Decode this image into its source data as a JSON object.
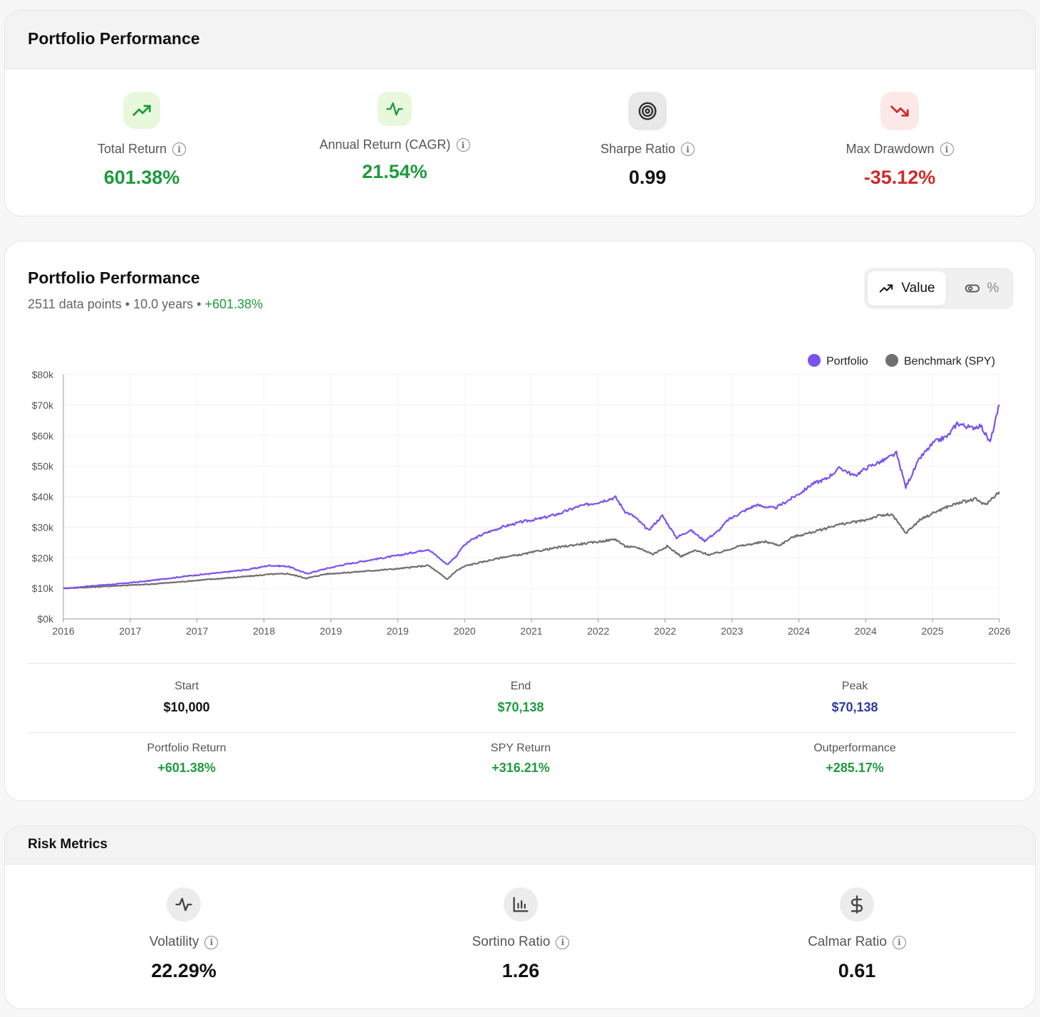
{
  "summary": {
    "title": "Portfolio Performance",
    "metrics": [
      {
        "label": "Total Return",
        "value": "601.38%",
        "icon": "trending-up-icon",
        "tone": "green"
      },
      {
        "label": "Annual Return (CAGR)",
        "value": "21.54%",
        "icon": "activity-icon",
        "tone": "green"
      },
      {
        "label": "Sharpe Ratio",
        "value": "0.99",
        "icon": "target-icon",
        "tone": "dark"
      },
      {
        "label": "Max Drawdown",
        "value": "-35.12%",
        "icon": "trending-down-icon",
        "tone": "red"
      }
    ],
    "info_glyph": "i"
  },
  "chart_panel": {
    "title": "Portfolio Performance",
    "subtitle_points": "2511 data points",
    "subtitle_sep": " • ",
    "subtitle_years": "10.0 years",
    "subtitle_return": "+601.38%",
    "toggle": {
      "value_label": "Value",
      "percent_label": "%",
      "active": "value"
    },
    "stats_row1": [
      {
        "label": "Start",
        "value": "$10,000",
        "tone": "dark"
      },
      {
        "label": "End",
        "value": "$70,138",
        "tone": "green"
      },
      {
        "label": "Peak",
        "value": "$70,138",
        "tone": "blue"
      }
    ],
    "stats_row2": [
      {
        "label": "Portfolio Return",
        "value": "+601.38%",
        "tone": "green"
      },
      {
        "label": "SPY Return",
        "value": "+316.21%",
        "tone": "green"
      },
      {
        "label": "Outperformance",
        "value": "+285.17%",
        "tone": "green"
      }
    ]
  },
  "chart_data": {
    "type": "line",
    "legend_position": "top-right",
    "grid": true,
    "ylim": [
      0,
      80000
    ],
    "y_ticks": [
      "$0k",
      "$10k",
      "$20k",
      "$30k",
      "$40k",
      "$50k",
      "$60k",
      "$70k",
      "$80k"
    ],
    "x_tick_labels": [
      "2016",
      "2017",
      "2017",
      "2018",
      "2019",
      "2019",
      "2020",
      "2021",
      "2022",
      "2022",
      "2023",
      "2024",
      "2024",
      "2025",
      "2026"
    ],
    "x_range": [
      2016.0,
      2026.0
    ],
    "colors": {
      "portfolio": "#7b52f0",
      "benchmark": "#6f6f6f"
    },
    "series": [
      {
        "name": "Portfolio",
        "x": [
          2016.0,
          2016.1,
          2016.3,
          2016.6,
          2016.9,
          2017.1,
          2017.4,
          2017.7,
          2018.0,
          2018.2,
          2018.4,
          2018.6,
          2018.8,
          2019.0,
          2019.3,
          2019.6,
          2019.9,
          2020.1,
          2020.2,
          2020.25,
          2020.35,
          2020.5,
          2020.7,
          2020.9,
          2021.1,
          2021.3,
          2021.5,
          2021.7,
          2021.9,
          2022.0,
          2022.1,
          2022.25,
          2022.4,
          2022.55,
          2022.7,
          2022.85,
          2023.0,
          2023.1,
          2023.25,
          2023.4,
          2023.6,
          2023.75,
          2023.9,
          2024.0,
          2024.15,
          2024.3,
          2024.45,
          2024.6,
          2024.75,
          2024.9,
          2025.0,
          2025.15,
          2025.3,
          2025.45,
          2025.55,
          2025.7,
          2025.8,
          2025.9,
          2026.0
        ],
        "y": [
          10000,
          10200,
          10800,
          11500,
          12400,
          13200,
          14300,
          15200,
          16300,
          17500,
          17200,
          14800,
          16400,
          17800,
          19400,
          20900,
          22800,
          17800,
          20600,
          23200,
          25700,
          28000,
          30200,
          31800,
          32900,
          34500,
          36800,
          38100,
          39800,
          35200,
          33500,
          29000,
          33800,
          26600,
          29100,
          25600,
          28900,
          32400,
          35000,
          37300,
          36200,
          38900,
          41800,
          44200,
          45900,
          49500,
          46800,
          49800,
          51700,
          54200,
          43200,
          52600,
          57800,
          59900,
          64100,
          62500,
          63400,
          57700,
          70138
        ]
      },
      {
        "name": "Benchmark (SPY)",
        "x": [
          2016.0,
          2016.3,
          2016.6,
          2016.9,
          2017.2,
          2017.5,
          2017.8,
          2018.0,
          2018.2,
          2018.4,
          2018.6,
          2018.8,
          2019.0,
          2019.3,
          2019.6,
          2019.9,
          2020.1,
          2020.2,
          2020.3,
          2020.5,
          2020.7,
          2020.9,
          2021.1,
          2021.3,
          2021.5,
          2021.7,
          2021.9,
          2022.0,
          2022.15,
          2022.3,
          2022.45,
          2022.6,
          2022.75,
          2022.9,
          2023.05,
          2023.2,
          2023.35,
          2023.5,
          2023.65,
          2023.8,
          2023.95,
          2024.1,
          2024.25,
          2024.4,
          2024.55,
          2024.7,
          2024.85,
          2025.0,
          2025.15,
          2025.3,
          2025.45,
          2025.6,
          2025.75,
          2025.85,
          2025.95,
          2026.0
        ],
        "y": [
          10000,
          10400,
          10900,
          11300,
          12000,
          12800,
          13500,
          14000,
          14600,
          14800,
          13300,
          14700,
          15100,
          15800,
          16500,
          17500,
          13000,
          15800,
          17400,
          18800,
          20200,
          21100,
          22400,
          23500,
          24400,
          25200,
          26100,
          23800,
          23200,
          21200,
          23800,
          20500,
          22400,
          21000,
          22100,
          23700,
          24500,
          25300,
          24100,
          26900,
          28000,
          29200,
          30700,
          31500,
          32200,
          33700,
          34200,
          28100,
          32400,
          34800,
          36800,
          38300,
          39200,
          37300,
          40300,
          41621
        ]
      }
    ]
  },
  "risk": {
    "title": "Risk Metrics",
    "metrics": [
      {
        "label": "Volatility",
        "value": "22.29%",
        "icon": "activity-icon"
      },
      {
        "label": "Sortino Ratio",
        "value": "1.26",
        "icon": "bar-chart-icon"
      },
      {
        "label": "Calmar Ratio",
        "value": "0.61",
        "icon": "dollar-sign-icon"
      }
    ]
  }
}
